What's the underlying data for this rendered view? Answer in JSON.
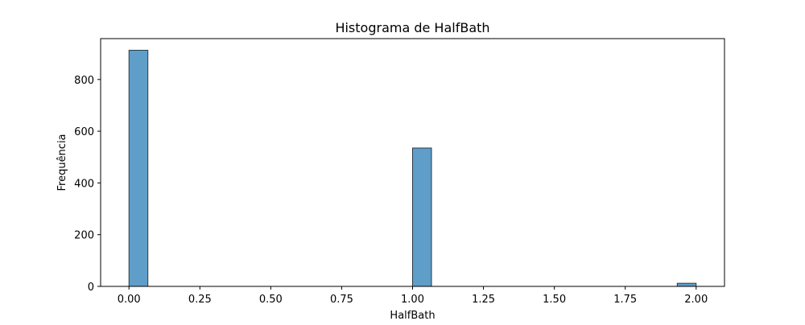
{
  "chart_data": {
    "type": "bar",
    "title": "Histograma de HalfBath",
    "xlabel": "HalfBath",
    "ylabel": "Frequência",
    "xlim": [
      -0.1,
      2.1
    ],
    "ylim": [
      0,
      958
    ],
    "xticks": [
      0.0,
      0.25,
      0.5,
      0.75,
      1.0,
      1.25,
      1.5,
      1.75,
      2.0
    ],
    "xtick_labels": [
      "0.00",
      "0.25",
      "0.50",
      "0.75",
      "1.00",
      "1.25",
      "1.50",
      "1.75",
      "2.00"
    ],
    "yticks": [
      0,
      200,
      400,
      600,
      800
    ],
    "ytick_labels": [
      "0",
      "200",
      "400",
      "600",
      "800"
    ],
    "bins": [
      {
        "x0": 0.0,
        "x1": 0.0667,
        "value": 913
      },
      {
        "x0": 1.0,
        "x1": 1.0667,
        "value": 535
      },
      {
        "x0": 1.9333,
        "x1": 2.0,
        "value": 12
      }
    ],
    "bar_color": "#5f9ec9",
    "edge_color": "#2b3a46",
    "grid": false
  }
}
